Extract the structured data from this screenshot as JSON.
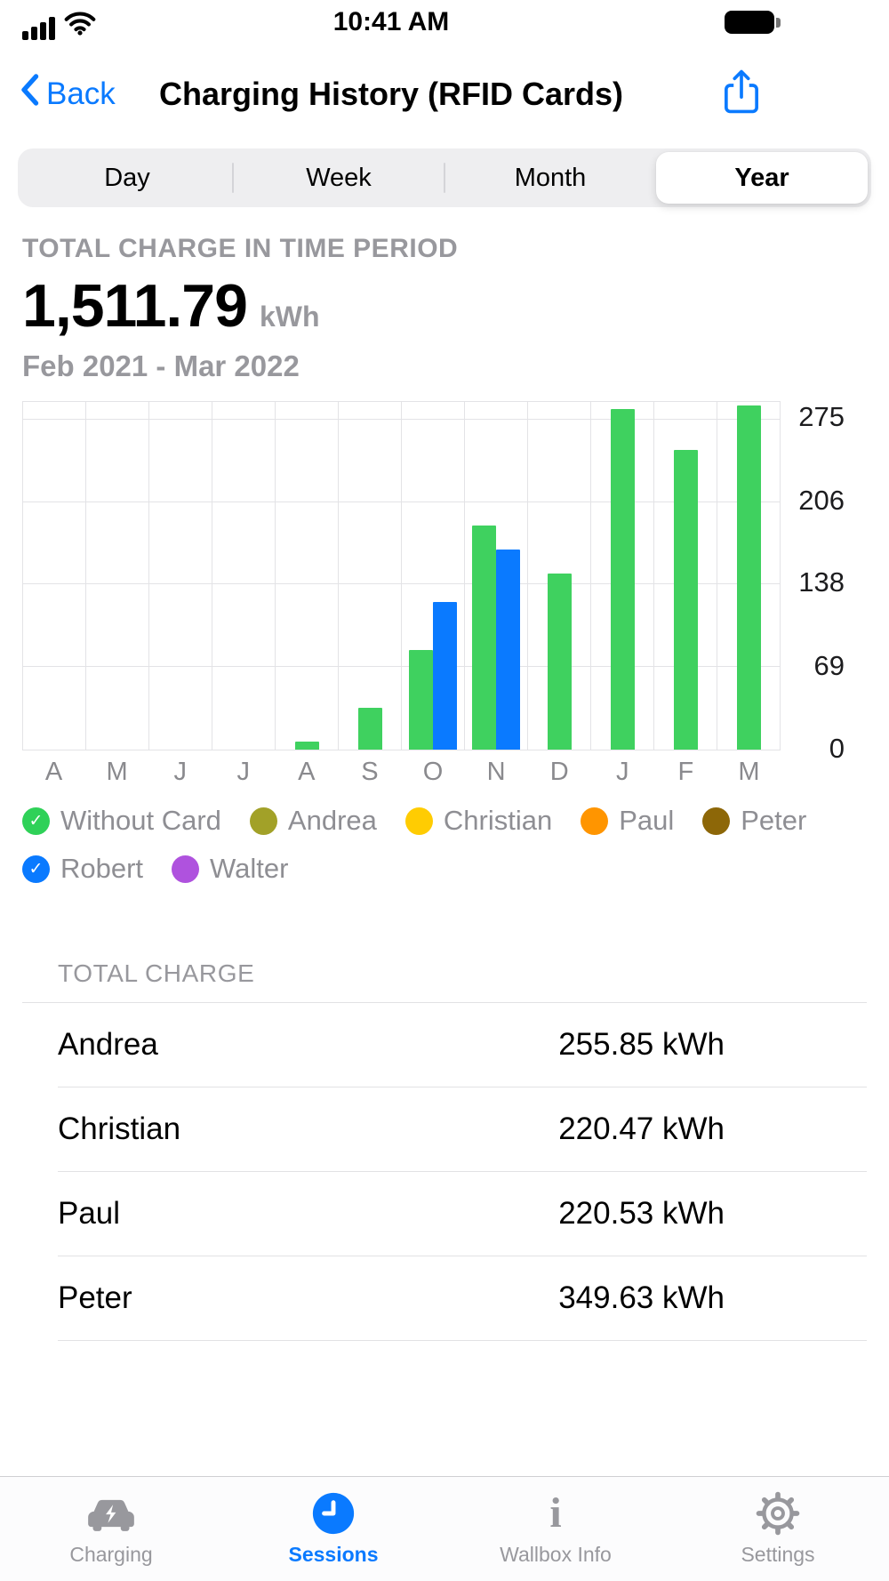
{
  "status_bar": {
    "time": "10:41 AM"
  },
  "nav": {
    "back_label": "Back",
    "title": "Charging History (RFID Cards)"
  },
  "segmented": {
    "items": [
      "Day",
      "Week",
      "Month",
      "Year"
    ],
    "selected": "Year"
  },
  "summary": {
    "label": "TOTAL CHARGE IN TIME PERIOD",
    "value": "1,511.79",
    "unit": "kWh",
    "period": "Feb 2021 - Mar 2022"
  },
  "chart_data": {
    "type": "bar",
    "x_labels": [
      "A",
      "M",
      "J",
      "J",
      "A",
      "S",
      "O",
      "N",
      "D",
      "J",
      "F",
      "M"
    ],
    "y_ticks": [
      0,
      69,
      138,
      206,
      275
    ],
    "y_max": 290,
    "grid": true,
    "legend_position": "bottom",
    "series": [
      {
        "name": "Without Card",
        "color": "#3fd15f",
        "values": [
          0,
          0,
          0,
          0,
          7,
          35,
          83,
          187,
          147,
          284,
          250,
          287
        ]
      },
      {
        "name": "Robert",
        "color": "#0a7aff",
        "values": [
          0,
          0,
          0,
          0,
          0,
          0,
          123,
          167,
          0,
          0,
          0,
          0
        ]
      }
    ]
  },
  "legend": {
    "items": [
      {
        "label": "Without Card",
        "color": "#2fd158",
        "checked": true
      },
      {
        "label": "Andrea",
        "color": "#a2a128",
        "checked": false
      },
      {
        "label": "Christian",
        "color": "#ffcc02",
        "checked": false
      },
      {
        "label": "Paul",
        "color": "#ff9500",
        "checked": false
      },
      {
        "label": "Peter",
        "color": "#8d6708",
        "checked": false
      },
      {
        "label": "Robert",
        "color": "#0a7aff",
        "checked": true
      },
      {
        "label": "Walter",
        "color": "#af52de",
        "checked": false
      }
    ]
  },
  "table": {
    "header": "TOTAL CHARGE",
    "rows": [
      {
        "name": "Andrea",
        "value": "255.85 kWh"
      },
      {
        "name": "Christian",
        "value": "220.47 kWh"
      },
      {
        "name": "Paul",
        "value": "220.53 kWh"
      },
      {
        "name": "Peter",
        "value": "349.63 kWh"
      }
    ]
  },
  "tab_bar": {
    "items": [
      {
        "label": "Charging",
        "active": false
      },
      {
        "label": "Sessions",
        "active": true
      },
      {
        "label": "Wallbox Info",
        "active": false
      },
      {
        "label": "Settings",
        "active": false
      }
    ]
  },
  "colors": {
    "accent": "#0a7aff",
    "bar_green": "#3fd15f",
    "bar_blue": "#0a7aff"
  }
}
